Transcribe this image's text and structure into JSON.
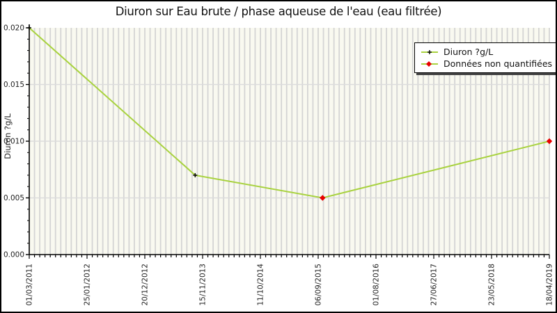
{
  "title": "Diuron sur Eau brute / phase aqueuse de l'eau (eau filtrée)",
  "y_axis_label": "Diuron ?g/L",
  "legend": {
    "position": "top-right",
    "items": [
      {
        "label": "Diuron ?g/L",
        "marker": "black-plus-on-green-line"
      },
      {
        "label": "Données non quantifiées",
        "marker": "red-diamond-on-green-line"
      }
    ]
  },
  "chart_data": {
    "type": "line",
    "title": "Diuron sur Eau brute / phase aqueuse de l'eau (eau filtrée)",
    "xlabel": "",
    "ylabel": "Diuron ?g/L",
    "ylim": [
      0.0,
      0.02
    ],
    "y_major_tick_labels": [
      "0.000",
      "0.005",
      "0.010",
      "0.015",
      "0.020"
    ],
    "y_minor_step": 0.001,
    "x_tick_labels": [
      "01/03/2011",
      "25/01/2012",
      "20/12/2012",
      "15/11/2013",
      "11/10/2014",
      "06/09/2015",
      "01/08/2016",
      "27/06/2017",
      "23/05/2018",
      "18/04/2019"
    ],
    "x_minor_intervals_per_major": 11,
    "grid": "vertical minor stripes (monthly) + light horizontal lines at y majors",
    "legend_position": "top-right",
    "series": [
      {
        "name": "Diuron ?g/L",
        "points": [
          {
            "x_frac": 0.0,
            "x_label": "01/03/2011",
            "value": 0.02,
            "quantified": true
          },
          {
            "x_frac": 0.319,
            "x_label": "~10/2013",
            "value": 0.007,
            "quantified": true
          },
          {
            "x_frac": 0.564,
            "x_label": "~09/2015",
            "value": 0.005,
            "quantified": false
          },
          {
            "x_frac": 1.0,
            "x_label": "18/04/2019",
            "value": 0.01,
            "quantified": false
          }
        ]
      }
    ],
    "colors": {
      "line": "#a8d23e",
      "quantified_marker": "#000000",
      "unquantified_marker": "#e80000",
      "plot_bg": "#f9f9f0",
      "stripe": "#d4d4d4",
      "h_grid": "#dcdcdc",
      "axis": "#000000",
      "tick_text": "#222222"
    }
  }
}
